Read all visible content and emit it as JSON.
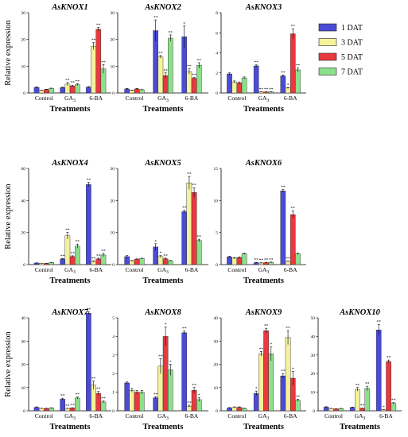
{
  "figure": {
    "ylabel": "Relative  expression",
    "xlabel": "Treatments",
    "legend": [
      {
        "name": "1  DAT",
        "color": "#4b4bd6"
      },
      {
        "name": "3  DAT",
        "color": "#f4f29a"
      },
      {
        "name": "5  DAT",
        "color": "#e8393f"
      },
      {
        "name": "7  DAT",
        "color": "#8be08b"
      }
    ]
  },
  "chart_data": [
    {
      "type": "bar",
      "title": "AsKNOX1",
      "categories": [
        "Control",
        "GA3",
        "6-BA"
      ],
      "ylim": [
        0,
        30
      ],
      "yticks": [
        0,
        10,
        20,
        30
      ],
      "series": [
        {
          "name": "1  DAT",
          "values": [
            2.1,
            2.0,
            2.2
          ],
          "errors": [
            0.2,
            0.2,
            0.2
          ],
          "sig": [
            "",
            "",
            ""
          ]
        },
        {
          "name": "3  DAT",
          "values": [
            1.0,
            3.3,
            17.5
          ],
          "errors": [
            0.1,
            0.6,
            1.3
          ],
          "sig": [
            "",
            "**",
            "**"
          ]
        },
        {
          "name": "5  DAT",
          "values": [
            1.3,
            2.6,
            23.8
          ],
          "errors": [
            0.1,
            0.3,
            0.7
          ],
          "sig": [
            "",
            "**",
            "**"
          ]
        },
        {
          "name": "7  DAT",
          "values": [
            1.7,
            3.1,
            9.0
          ],
          "errors": [
            0.1,
            0.3,
            1.6
          ],
          "sig": [
            "",
            "**",
            "**"
          ]
        }
      ]
    },
    {
      "type": "bar",
      "title": "AsKNOX2",
      "categories": [
        "Control",
        "GA3",
        "6-BA"
      ],
      "ylim": [
        0,
        30
      ],
      "yticks": [
        0,
        10,
        20,
        30
      ],
      "series": [
        {
          "name": "1  DAT",
          "values": [
            1.5,
            23.3,
            21.0
          ],
          "errors": [
            0.2,
            4.0,
            4.0
          ],
          "sig": [
            "",
            "**",
            "*"
          ]
        },
        {
          "name": "3  DAT",
          "values": [
            1.0,
            13.5,
            8.0
          ],
          "errors": [
            0.1,
            0.5,
            1.0
          ],
          "sig": [
            "",
            "**",
            "**"
          ]
        },
        {
          "name": "5  DAT",
          "values": [
            1.5,
            6.5,
            5.5
          ],
          "errors": [
            0.2,
            1.0,
            0.3
          ],
          "sig": [
            "",
            "**",
            "**"
          ]
        },
        {
          "name": "7  DAT",
          "values": [
            1.2,
            20.5,
            10.3
          ],
          "errors": [
            0.1,
            1.2,
            1.0
          ],
          "sig": [
            "",
            "**",
            "**"
          ]
        }
      ]
    },
    {
      "type": "bar",
      "title": "AsKNOX3",
      "categories": [
        "Control",
        "GA3",
        "6-BA"
      ],
      "ylim": [
        0,
        8
      ],
      "yticks": [
        0,
        2,
        4,
        6,
        8
      ],
      "series": [
        {
          "name": "1  DAT",
          "values": [
            1.9,
            2.7,
            1.7
          ],
          "errors": [
            0.1,
            0.1,
            0.1
          ],
          "sig": [
            "",
            "**",
            "**"
          ]
        },
        {
          "name": "3  DAT",
          "values": [
            1.1,
            0.1,
            0.5
          ],
          "errors": [
            0.1,
            0.02,
            0.05
          ],
          "sig": [
            "",
            "**",
            "*"
          ]
        },
        {
          "name": "5  DAT",
          "values": [
            1.0,
            0.1,
            5.9
          ],
          "errors": [
            0.1,
            0.02,
            0.5
          ],
          "sig": [
            "",
            "**",
            "**"
          ]
        },
        {
          "name": "7  DAT",
          "values": [
            1.5,
            0.1,
            2.3
          ],
          "errors": [
            0.1,
            0.02,
            0.2
          ],
          "sig": [
            "",
            "**",
            "**"
          ]
        }
      ]
    },
    {
      "type": "bar",
      "title": "AsKNOX4",
      "categories": [
        "Control",
        "GA3",
        "6-BA"
      ],
      "ylim": [
        0,
        60
      ],
      "yticks": [
        0,
        20,
        40,
        60
      ],
      "series": [
        {
          "name": "1  DAT",
          "values": [
            1.0,
            3.5,
            50.0
          ],
          "errors": [
            0.1,
            0.3,
            1.2
          ],
          "sig": [
            "",
            "**",
            "**"
          ]
        },
        {
          "name": "3  DAT",
          "values": [
            0.8,
            18.0,
            2.0
          ],
          "errors": [
            0.1,
            2.0,
            0.3
          ],
          "sig": [
            "",
            "**",
            "**"
          ]
        },
        {
          "name": "5  DAT",
          "values": [
            0.7,
            5.0,
            3.5
          ],
          "errors": [
            0.1,
            0.5,
            0.5
          ],
          "sig": [
            "",
            "**",
            "**"
          ]
        },
        {
          "name": "7  DAT",
          "values": [
            1.3,
            11.5,
            6.0
          ],
          "errors": [
            0.1,
            1.3,
            1.0
          ],
          "sig": [
            "",
            "**",
            "**"
          ]
        }
      ]
    },
    {
      "type": "bar",
      "title": "AsKNOX5",
      "categories": [
        "Control",
        "GA3",
        "6-BA"
      ],
      "ylim": [
        0,
        30
      ],
      "yticks": [
        0,
        10,
        20,
        30
      ],
      "series": [
        {
          "name": "1  DAT",
          "values": [
            2.5,
            5.5,
            16.5
          ],
          "errors": [
            0.3,
            1.0,
            0.5
          ],
          "sig": [
            "",
            "*",
            "**"
          ]
        },
        {
          "name": "3  DAT",
          "values": [
            1.2,
            2.5,
            25.5
          ],
          "errors": [
            0.1,
            0.3,
            2.0
          ],
          "sig": [
            "",
            "*",
            "**"
          ]
        },
        {
          "name": "5  DAT",
          "values": [
            1.7,
            1.8,
            22.5
          ],
          "errors": [
            0.1,
            0.2,
            1.5
          ],
          "sig": [
            "",
            "**",
            "**"
          ]
        },
        {
          "name": "7  DAT",
          "values": [
            1.9,
            1.2,
            7.5
          ],
          "errors": [
            0.1,
            0.1,
            0.4
          ],
          "sig": [
            "",
            "",
            "**"
          ]
        }
      ]
    },
    {
      "type": "bar",
      "title": "AsKNOX6",
      "categories": [
        "Control",
        "GA3",
        "6-BA"
      ],
      "ylim": [
        0,
        15
      ],
      "yticks": [
        0,
        5,
        10,
        15
      ],
      "series": [
        {
          "name": "1  DAT",
          "values": [
            1.2,
            0.3,
            11.5
          ],
          "errors": [
            0.1,
            0.05,
            0.2
          ],
          "sig": [
            "",
            "**",
            "**"
          ]
        },
        {
          "name": "3  DAT",
          "values": [
            1.0,
            0.25,
            0.5
          ],
          "errors": [
            0.1,
            0.05,
            0.05
          ],
          "sig": [
            "",
            "**",
            "**"
          ]
        },
        {
          "name": "5  DAT",
          "values": [
            1.1,
            0.3,
            7.8
          ],
          "errors": [
            0.1,
            0.05,
            0.6
          ],
          "sig": [
            "",
            "**",
            "**"
          ]
        },
        {
          "name": "7  DAT",
          "values": [
            1.7,
            0.35,
            1.7
          ],
          "errors": [
            0.1,
            0.05,
            0.1
          ],
          "sig": [
            "",
            "**",
            ""
          ]
        }
      ]
    },
    {
      "type": "bar",
      "title": "AsKNOX7",
      "categories": [
        "Control",
        "GA3",
        "6-BA"
      ],
      "ylim": [
        0,
        40
      ],
      "yticks": [
        0,
        10,
        20,
        30,
        40
      ],
      "series": [
        {
          "name": "1  DAT",
          "values": [
            1.5,
            5.0,
            42.0
          ],
          "errors": [
            0.2,
            0.4,
            0.6
          ],
          "sig": [
            "",
            "**",
            "**"
          ]
        },
        {
          "name": "3  DAT",
          "values": [
            1.0,
            1.0,
            11.0
          ],
          "errors": [
            0.1,
            0.1,
            1.8
          ],
          "sig": [
            "",
            "**",
            "**"
          ]
        },
        {
          "name": "5  DAT",
          "values": [
            1.0,
            1.2,
            7.5
          ],
          "errors": [
            0.1,
            0.1,
            0.8
          ],
          "sig": [
            "",
            "**",
            "**"
          ]
        },
        {
          "name": "7  DAT",
          "values": [
            1.2,
            5.5,
            3.8
          ],
          "errors": [
            0.1,
            0.4,
            0.4
          ],
          "sig": [
            "",
            "**",
            "**"
          ]
        }
      ]
    },
    {
      "type": "bar",
      "title": "AsKNOX8",
      "categories": [
        "Control",
        "GA3",
        "6-BA"
      ],
      "ylim": [
        0,
        5
      ],
      "yticks": [
        0,
        1,
        2,
        3,
        4,
        5
      ],
      "series": [
        {
          "name": "1  DAT",
          "values": [
            1.5,
            0.7,
            4.2
          ],
          "errors": [
            0.05,
            0.05,
            0.1
          ],
          "sig": [
            "",
            "**",
            "**"
          ]
        },
        {
          "name": "3  DAT",
          "values": [
            1.1,
            2.4,
            0.25
          ],
          "errors": [
            0.1,
            0.4,
            0.05
          ],
          "sig": [
            "",
            "**",
            "**"
          ]
        },
        {
          "name": "5  DAT",
          "values": [
            1.0,
            4.0,
            1.1
          ],
          "errors": [
            0.1,
            0.5,
            0.15
          ],
          "sig": [
            "",
            "*",
            "**"
          ]
        },
        {
          "name": "7  DAT",
          "values": [
            1.0,
            2.2,
            0.6
          ],
          "errors": [
            0.1,
            0.3,
            0.1
          ],
          "sig": [
            "",
            "*",
            "*"
          ]
        }
      ]
    },
    {
      "type": "bar",
      "title": "AsKNOX9",
      "categories": [
        "Control",
        "GA3",
        "6-BA"
      ],
      "ylim": [
        0,
        40
      ],
      "yticks": [
        0,
        10,
        20,
        30,
        40
      ],
      "series": [
        {
          "name": "1  DAT",
          "values": [
            1.2,
            7.5,
            15.0
          ],
          "errors": [
            0.2,
            1.0,
            1.0
          ],
          "sig": [
            "",
            "*",
            "**"
          ]
        },
        {
          "name": "3  DAT",
          "values": [
            1.5,
            24.5,
            31.5
          ],
          "errors": [
            0.2,
            1.0,
            3.0
          ],
          "sig": [
            "",
            "**",
            "**"
          ]
        },
        {
          "name": "5  DAT",
          "values": [
            1.5,
            34.5,
            14.0
          ],
          "errors": [
            0.2,
            1.0,
            3.0
          ],
          "sig": [
            "",
            "**",
            "*"
          ]
        },
        {
          "name": "7  DAT",
          "values": [
            1.0,
            24.5,
            4.5
          ],
          "errors": [
            0.1,
            3.0,
            0.5
          ],
          "sig": [
            "",
            "*",
            "**"
          ]
        }
      ]
    },
    {
      "type": "bar",
      "title": "AsKNOX10",
      "categories": [
        "Control",
        "GA3",
        "6-BA"
      ],
      "ylim": [
        0,
        50
      ],
      "yticks": [
        0,
        10,
        20,
        30,
        40,
        50
      ],
      "series": [
        {
          "name": "1  DAT",
          "values": [
            2.0,
            1.8,
            43.5
          ],
          "errors": [
            0.2,
            0.2,
            3.0
          ],
          "sig": [
            "",
            "",
            "**"
          ]
        },
        {
          "name": "3  DAT",
          "values": [
            1.2,
            11.5,
            0.5
          ],
          "errors": [
            0.1,
            1.0,
            0.1
          ],
          "sig": [
            "",
            "**",
            "*"
          ]
        },
        {
          "name": "5  DAT",
          "values": [
            1.0,
            1.3,
            26.5
          ],
          "errors": [
            0.1,
            0.1,
            0.8
          ],
          "sig": [
            "",
            "**",
            "**"
          ]
        },
        {
          "name": "7  DAT",
          "values": [
            1.2,
            12.0,
            4.0
          ],
          "errors": [
            0.1,
            1.2,
            0.4
          ],
          "sig": [
            "",
            "**",
            "**"
          ]
        }
      ]
    }
  ]
}
